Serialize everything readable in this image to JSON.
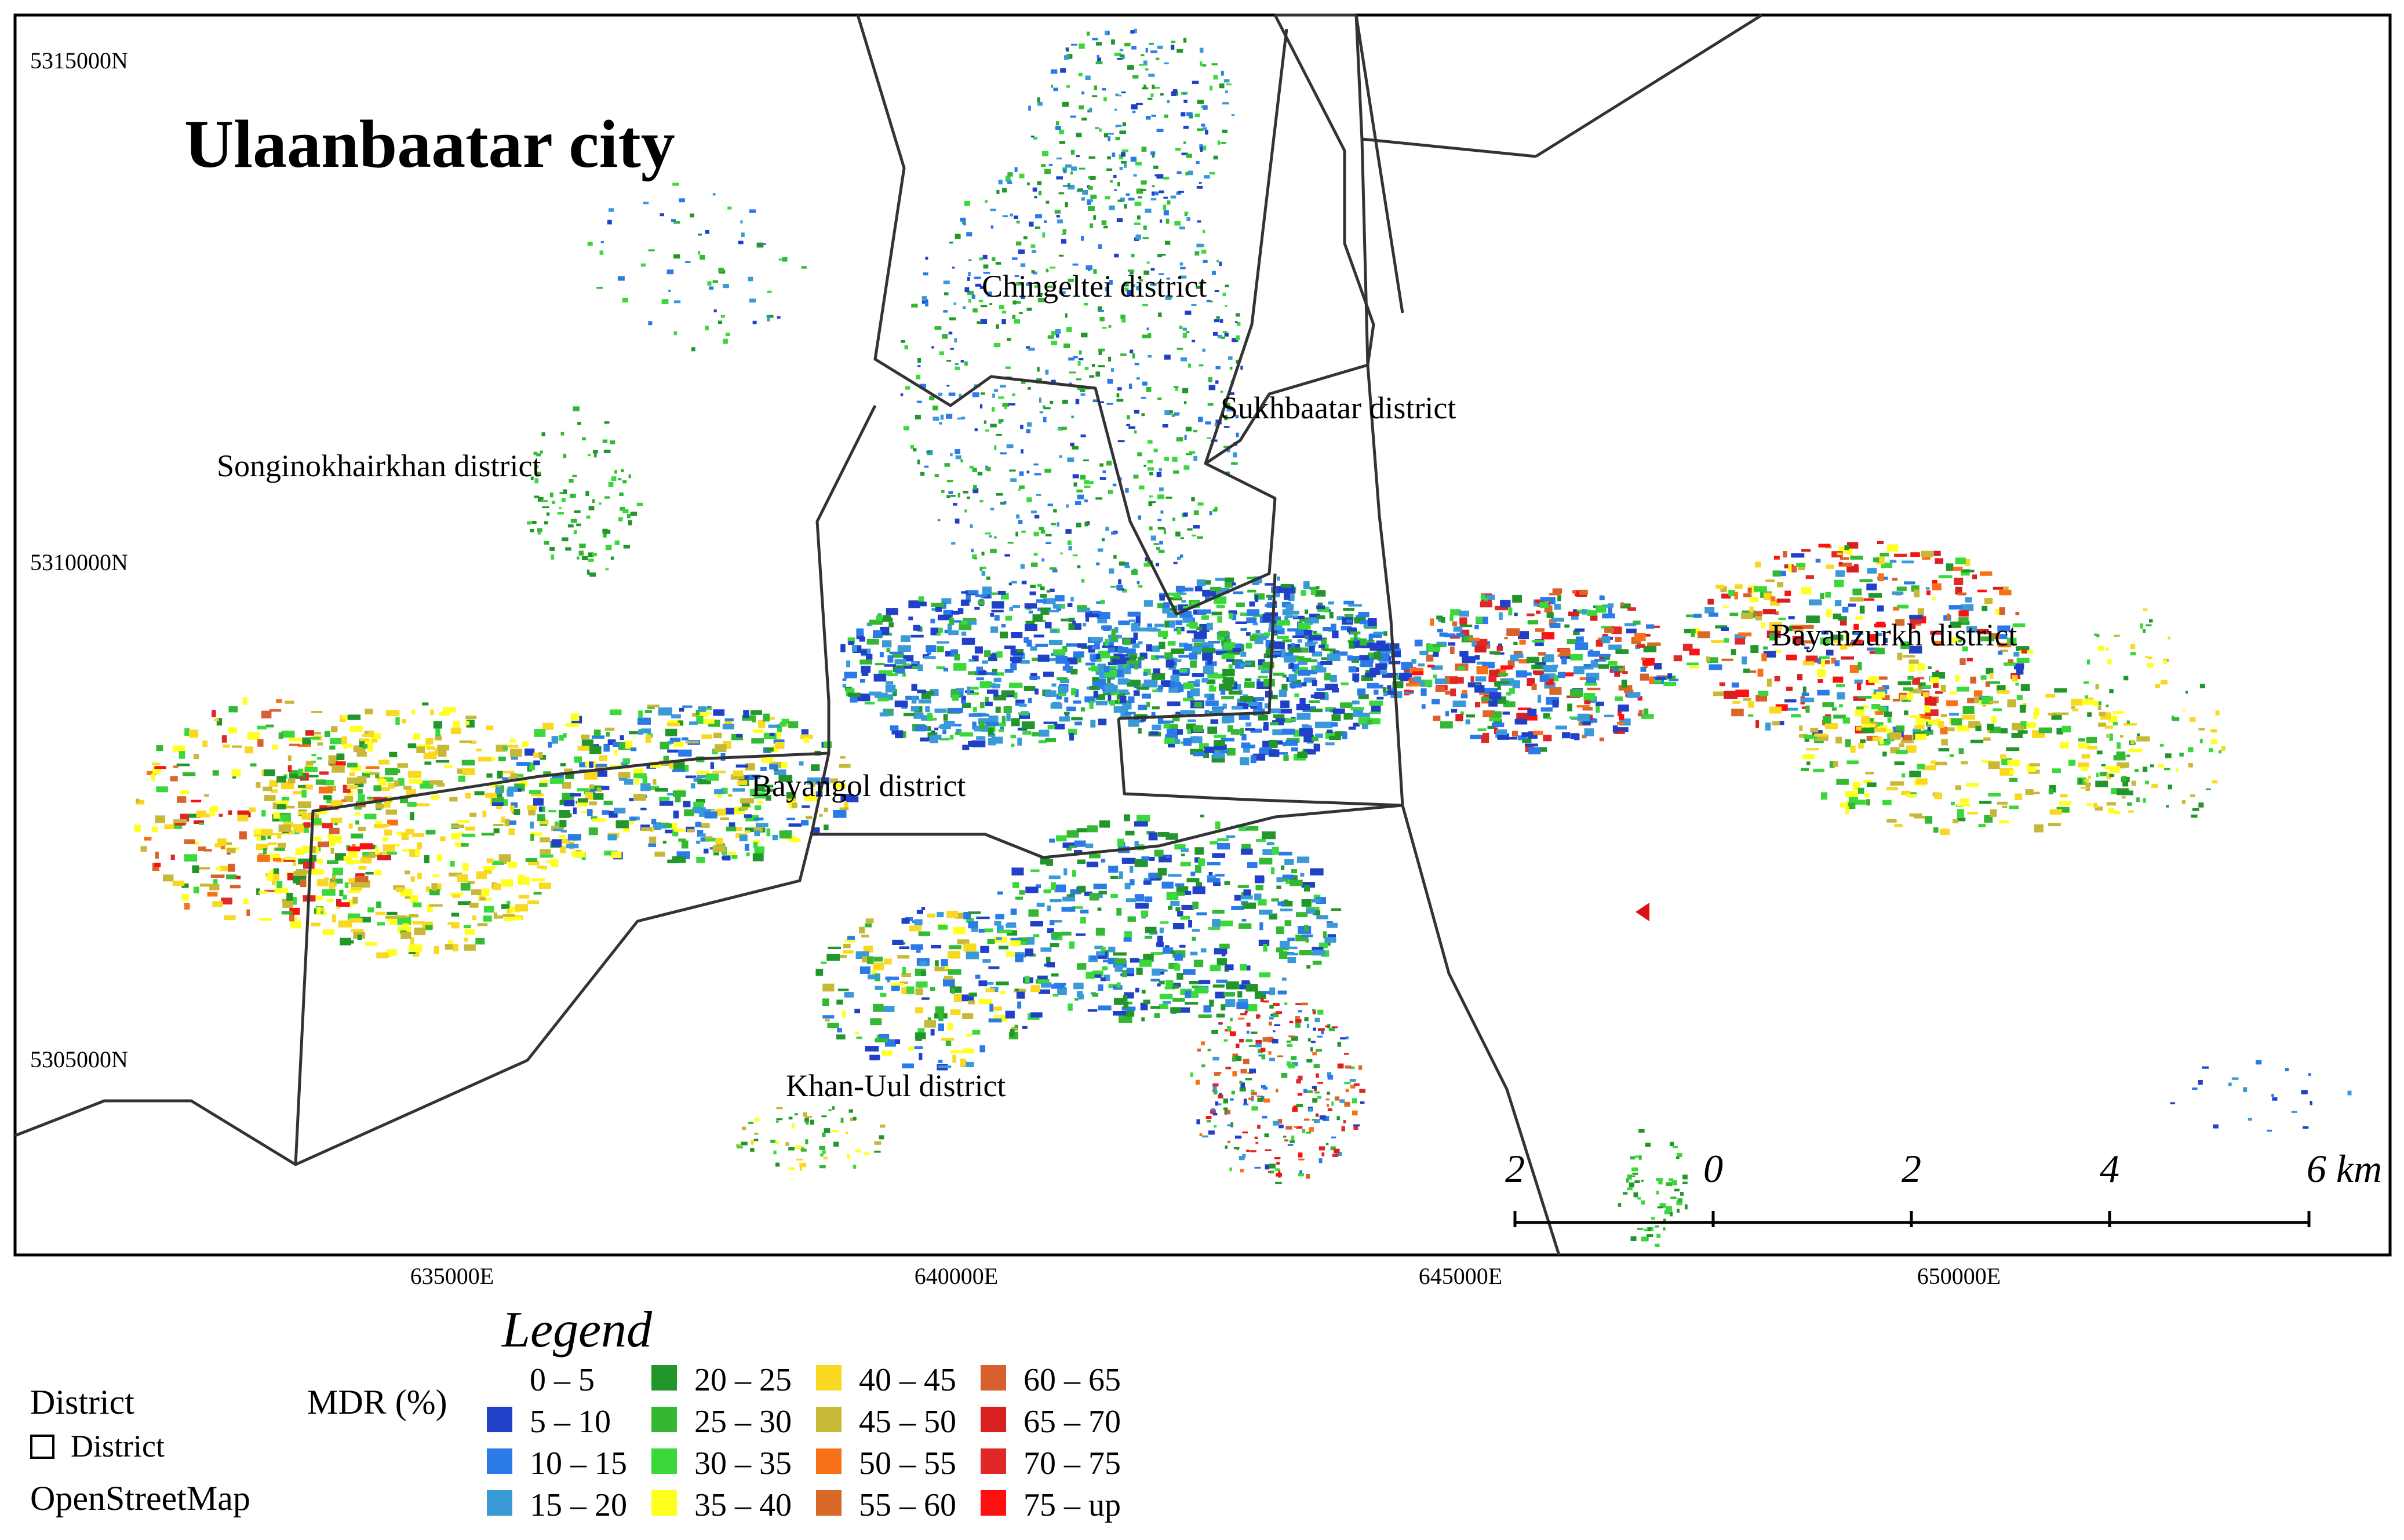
{
  "map": {
    "title": "Ulaanbaatar city",
    "districts": [
      {
        "id": "chingeltei",
        "label": "Chingeltei district"
      },
      {
        "id": "sukhbaatar",
        "label": "Sukhbaatar district"
      },
      {
        "id": "songinokhairkhan",
        "label": "Songinokhairkhan district"
      },
      {
        "id": "bayanzurkh",
        "label": "Bayanzurkh district"
      },
      {
        "id": "bayangol",
        "label": "Bayangol district"
      },
      {
        "id": "khan-uul",
        "label": "Khan-Uul district"
      }
    ],
    "northing_labels": [
      "5315000N",
      "5310000N",
      "5305000N"
    ],
    "easting_labels": [
      "635000E",
      "640000E",
      "645000E",
      "650000E"
    ],
    "scale_bar": {
      "labels": [
        "2",
        "0",
        "2",
        "4",
        "6 km"
      ]
    }
  },
  "legend": {
    "title": "Legend",
    "district_heading": "District",
    "district_item": "District",
    "basemap_label": "OpenStreetMap",
    "mdr_label": "MDR (%)",
    "classes": [
      {
        "label": "0 – 5",
        "color": ""
      },
      {
        "label": "5 – 10",
        "color": "#2040c8"
      },
      {
        "label": "10 – 15",
        "color": "#2a7ae8"
      },
      {
        "label": "15 – 20",
        "color": "#3a9ad8"
      },
      {
        "label": "20 – 25",
        "color": "#22962a"
      },
      {
        "label": "25 – 30",
        "color": "#34b834"
      },
      {
        "label": "30 – 35",
        "color": "#3ad83a"
      },
      {
        "label": "35 – 40",
        "color": "#ffff20"
      },
      {
        "label": "40 – 45",
        "color": "#f8d820"
      },
      {
        "label": "45 – 50",
        "color": "#c8b838"
      },
      {
        "label": "50 – 55",
        "color": "#f87018"
      },
      {
        "label": "55 – 60",
        "color": "#d86828"
      },
      {
        "label": "60 – 65",
        "color": "#d86030"
      },
      {
        "label": "65 – 70",
        "color": "#d82020"
      },
      {
        "label": "70 – 75",
        "color": "#e02828"
      },
      {
        "label": "75 – up",
        "color": "#ff1010"
      }
    ]
  }
}
